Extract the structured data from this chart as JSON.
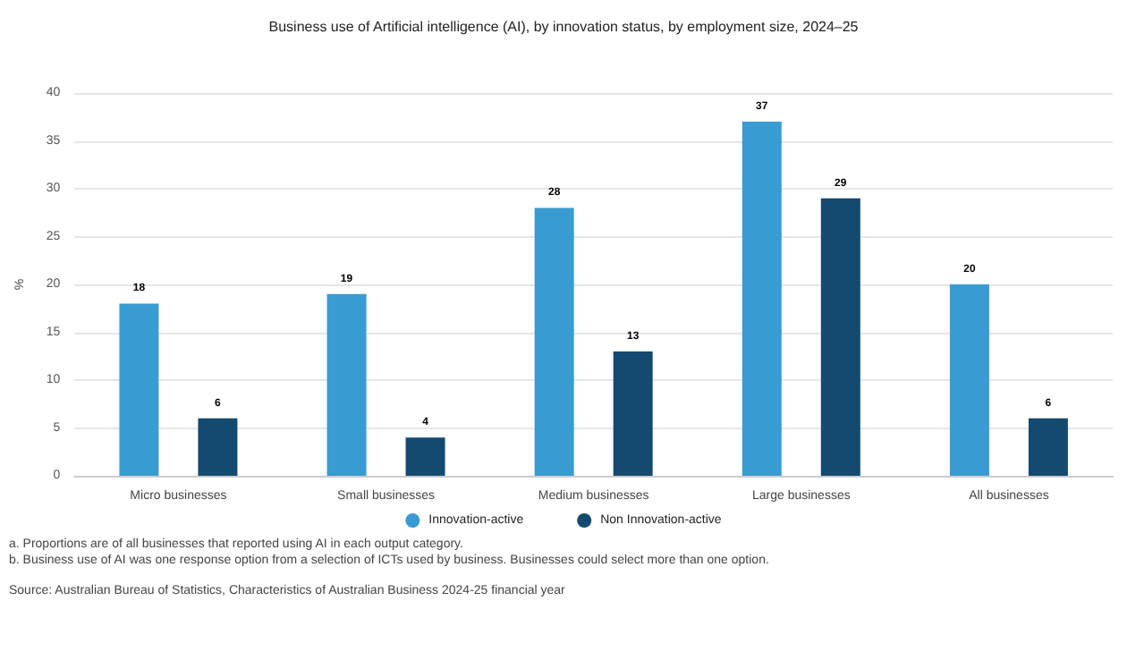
{
  "chart_data": {
    "type": "bar",
    "title": "Business use of Artificial intelligence (AI), by innovation status, by employment size, 2024–25",
    "ylabel": "%",
    "categories": [
      "Micro businesses",
      "Small businesses",
      "Medium businesses",
      "Large businesses",
      "All businesses"
    ],
    "series": [
      {
        "name": "Innovation-active",
        "color": "#3a9bd2",
        "values": [
          18,
          19,
          28,
          37,
          20
        ]
      },
      {
        "name": "Non Innovation-active",
        "color": "#144a70",
        "values": [
          6,
          4,
          13,
          29,
          6
        ]
      }
    ],
    "ylim": [
      0,
      40
    ],
    "yticks": [
      0,
      5,
      10,
      15,
      20,
      25,
      30,
      35,
      40
    ],
    "grid": "y",
    "legend": "bottom",
    "data_labels": true,
    "annotations": [
      "a. Proportions are of all businesses that reported using AI in each output category.",
      "b. Business use of AI was one response option from a selection of ICTs used by business. Businesses could select more than one option.",
      "Source: Australian Bureau of Statistics, Characteristics of Australian Business 2024-25 financial year"
    ]
  }
}
